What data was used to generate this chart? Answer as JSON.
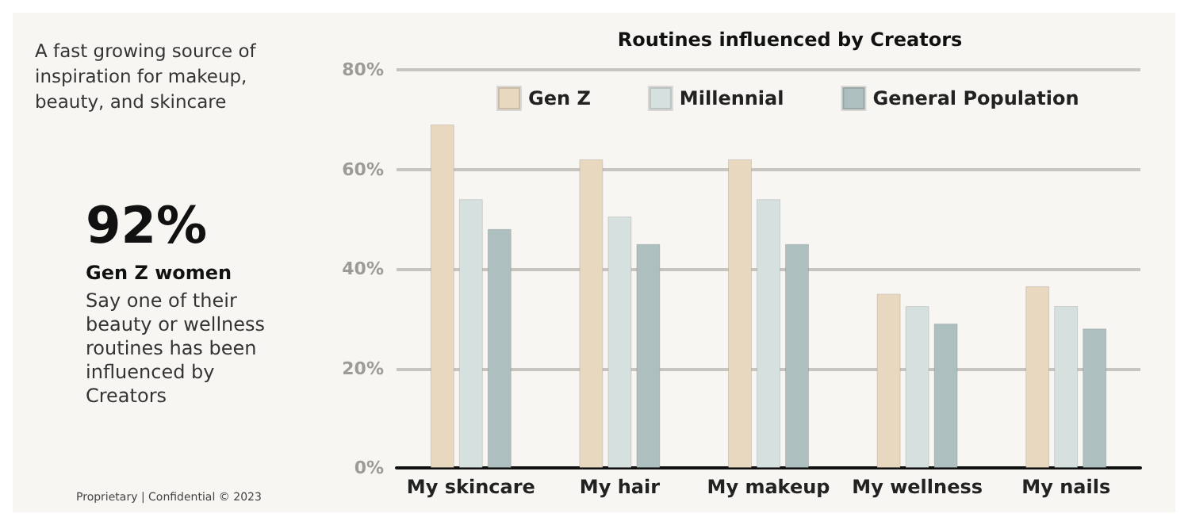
{
  "chart_data": {
    "type": "bar",
    "title": "Routines influenced by Creators",
    "categories": [
      "My skincare",
      "My hair",
      "My makeup",
      "My wellness",
      "My nails"
    ],
    "series": [
      {
        "name": "Gen Z",
        "color": "#e8d8c0",
        "values": [
          69,
          62,
          62,
          35,
          36.5
        ]
      },
      {
        "name": "Millennial",
        "color": "#d6e0df",
        "values": [
          54,
          50.5,
          54,
          32.5,
          32.5
        ]
      },
      {
        "name": "General Population",
        "color": "#adbfbf",
        "values": [
          48,
          45,
          45,
          29,
          28
        ]
      }
    ],
    "ylim": [
      0,
      80
    ],
    "yticks": [
      {
        "value": 0,
        "label": "0%"
      },
      {
        "value": 20,
        "label": "20%"
      },
      {
        "value": 40,
        "label": "40%"
      },
      {
        "value": 60,
        "label": "60%"
      },
      {
        "value": 80,
        "label": "80%"
      }
    ],
    "grid": "y",
    "legend": "top",
    "annotations": [
      "A fast growing source of inspiration for makeup, beauty, and skincare",
      "92%",
      "Gen Z women",
      "Say one of their beauty or wellness routines has been influenced by Creators",
      "Proprietary | Confidential © 2023"
    ]
  }
}
